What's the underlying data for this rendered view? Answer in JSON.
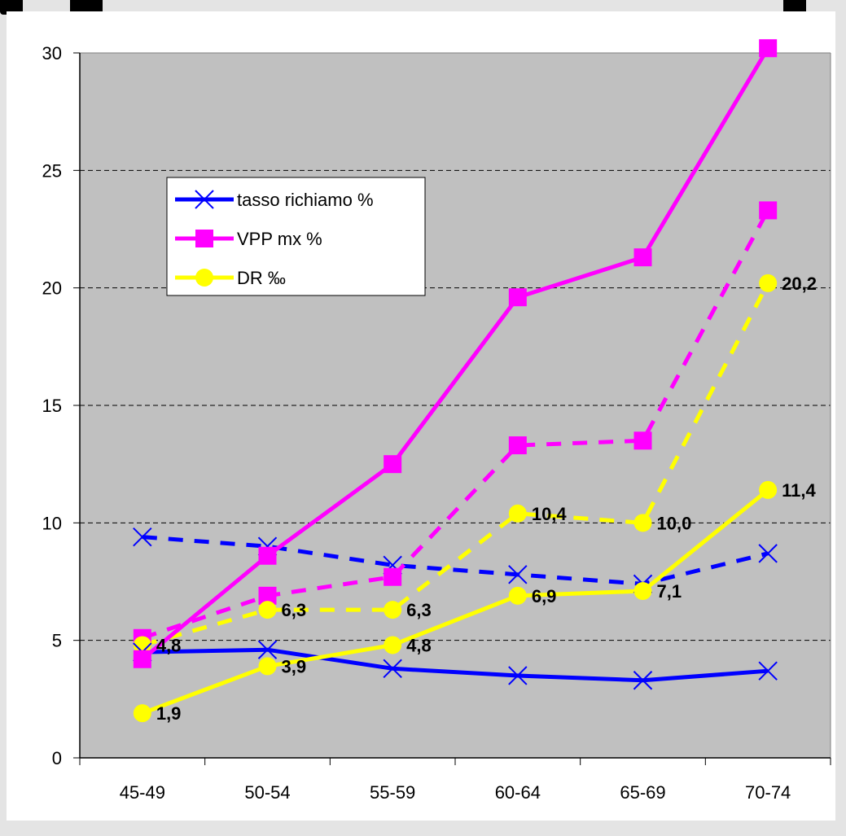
{
  "chart_data": {
    "type": "line",
    "categories": [
      "45-49",
      "50-54",
      "55-59",
      "60-64",
      "65-69",
      "70-74"
    ],
    "ylim": [
      0,
      30
    ],
    "yticks": [
      0,
      5,
      10,
      15,
      20,
      25,
      30
    ],
    "grid": "horizontal dashed",
    "plot_background": "#c0c0c0",
    "legend_position": "upper-left inside plot",
    "series": [
      {
        "name": "tasso richiamo %",
        "color": "#0000ff",
        "marker": "x",
        "style": "solid",
        "values": [
          4.5,
          4.6,
          3.8,
          3.5,
          3.3,
          3.7
        ]
      },
      {
        "color": "#0000ff",
        "marker": "x",
        "style": "dashed",
        "values": [
          9.4,
          9.0,
          8.2,
          7.8,
          7.4,
          8.7
        ]
      },
      {
        "name": "VPP mx %",
        "color": "#ff00ff",
        "marker": "square",
        "style": "solid",
        "values": [
          4.2,
          8.6,
          12.5,
          19.6,
          21.3,
          30.2
        ]
      },
      {
        "color": "#ff00ff",
        "marker": "square",
        "style": "dashed",
        "values": [
          5.1,
          6.9,
          7.7,
          13.3,
          13.5,
          23.3
        ]
      },
      {
        "name": "DR ‰",
        "color": "#ffff00",
        "marker": "circle",
        "style": "solid",
        "values": [
          1.9,
          3.9,
          4.8,
          6.9,
          7.1,
          11.4
        ],
        "labels": [
          "1,9",
          "3,9",
          "4,8",
          "6,9",
          "7,1",
          "11,4"
        ]
      },
      {
        "color": "#ffff00",
        "marker": "circle",
        "style": "dashed",
        "values": [
          4.8,
          6.3,
          6.3,
          10.4,
          10.0,
          20.2
        ],
        "labels": [
          "4,8",
          "6,3",
          "6,3",
          "10,4",
          "10,0",
          "20,2"
        ]
      }
    ]
  }
}
